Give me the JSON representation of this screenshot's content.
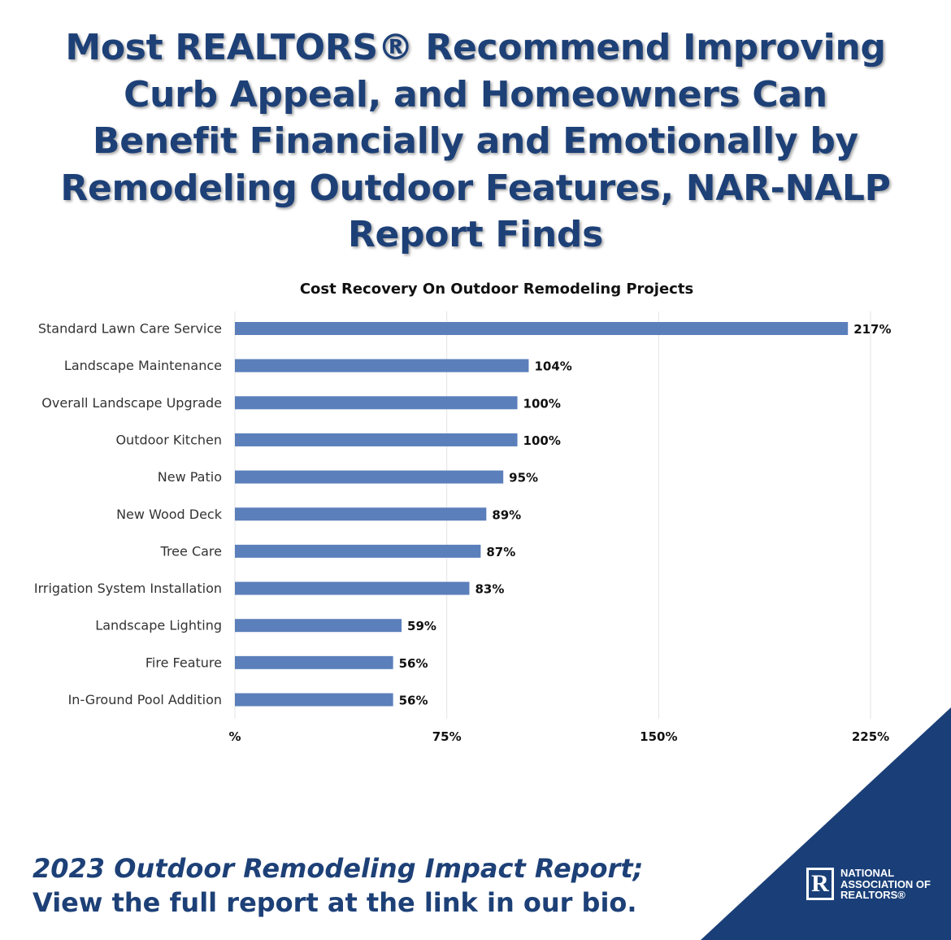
{
  "headline": {
    "lines": [
      "Most REALTORS® Recommend Improving",
      "Curb Appeal, and Homeowners Can",
      "Benefit Financially and Emotionally by",
      "Remodeling Outdoor Features, NAR-NALP",
      "Report Finds"
    ]
  },
  "chart_data": {
    "type": "bar",
    "orientation": "horizontal",
    "title": "Cost Recovery On Outdoor Remodeling Projects",
    "categories": [
      "Standard Lawn Care Service",
      "Landscape Maintenance",
      "Overall Landscape Upgrade",
      "Outdoor Kitchen",
      "New Patio",
      "New Wood Deck",
      "Tree Care",
      "Irrigation System Installation",
      "Landscape Lighting",
      "Fire Feature",
      "In-Ground Pool Addition"
    ],
    "values": [
      217,
      104,
      100,
      100,
      95,
      89,
      87,
      83,
      59,
      56,
      56
    ],
    "value_labels": [
      "217%",
      "104%",
      "100%",
      "100%",
      "95%",
      "89%",
      "87%",
      "83%",
      "59%",
      "56%",
      "56%"
    ],
    "xlim": [
      0,
      225
    ],
    "xticks": [
      0,
      75,
      150,
      225
    ],
    "xtick_labels": [
      "%",
      "75%",
      "150%",
      "225%"
    ],
    "grid": "vertical",
    "bar_color": "#5b7fbb",
    "xlabel": "",
    "ylabel": ""
  },
  "footer": {
    "line1": "2023 Outdoor Remodeling Impact Report;",
    "line2": "View the full report at the link in our bio."
  },
  "logo": {
    "mark": "R",
    "lines": [
      "NATIONAL",
      "ASSOCIATION OF",
      "REALTORS®"
    ]
  },
  "colors": {
    "brand_navy": "#1d4077",
    "corner_navy": "#1a3f78",
    "bar": "#5b7fbb",
    "grid": "#e3e3e3"
  }
}
